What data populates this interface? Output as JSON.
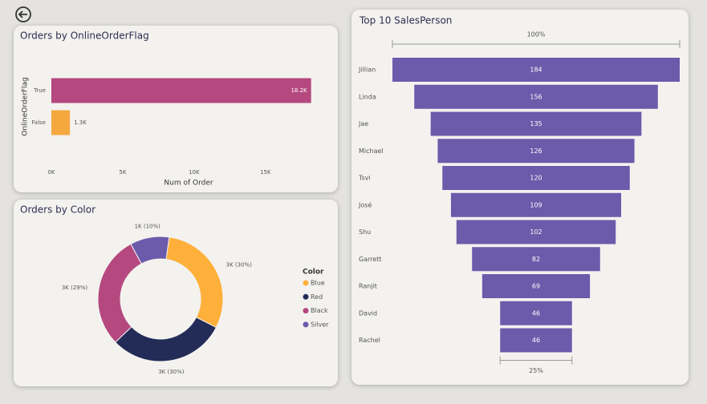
{
  "chart_data": [
    {
      "type": "hbar",
      "title": "Orders by OnlineOrderFlag",
      "x_label": "Num of Order",
      "y_label": "OnlineOrderFlag",
      "categories": [
        "True",
        "False"
      ],
      "values": [
        18200,
        1300
      ],
      "value_labels": [
        "18.2K",
        "1.3K"
      ],
      "colors": [
        "#b5487f",
        "#f5a83e"
      ],
      "xlim": [
        0,
        18500
      ],
      "xticks": [
        {
          "value": 0,
          "label": "0K"
        },
        {
          "value": 5000,
          "label": "5K"
        },
        {
          "value": 10000,
          "label": "10K"
        },
        {
          "value": 15000,
          "label": "15K"
        }
      ]
    },
    {
      "type": "donut",
      "title": "Orders by Color",
      "legend_title": "Color",
      "legend": "right",
      "categories": [
        "Blue",
        "Red",
        "Black",
        "Silver"
      ],
      "values": [
        30,
        30,
        29,
        10
      ],
      "value_labels": [
        "3K (30%)",
        "3K (30%)",
        "3K (29%)",
        "1K (10%)"
      ],
      "colors": [
        "#ffb03b",
        "#232c57",
        "#b5487f",
        "#6b5bab"
      ]
    },
    {
      "type": "funnel",
      "title": "Top 10 SalesPerson",
      "color": "#6b5bab",
      "categories": [
        "Jillian",
        "Linda",
        "Jae",
        "Michael",
        "Tsvi",
        "José",
        "Shu",
        "Garrett",
        "Ranjit",
        "David",
        "Rachel"
      ],
      "values": [
        184,
        156,
        135,
        126,
        120,
        109,
        102,
        82,
        69,
        46,
        46
      ],
      "top_ratio": {
        "value": 100,
        "label": "100%"
      },
      "bottom_ratio": {
        "value": 25,
        "label": "25%"
      }
    }
  ]
}
